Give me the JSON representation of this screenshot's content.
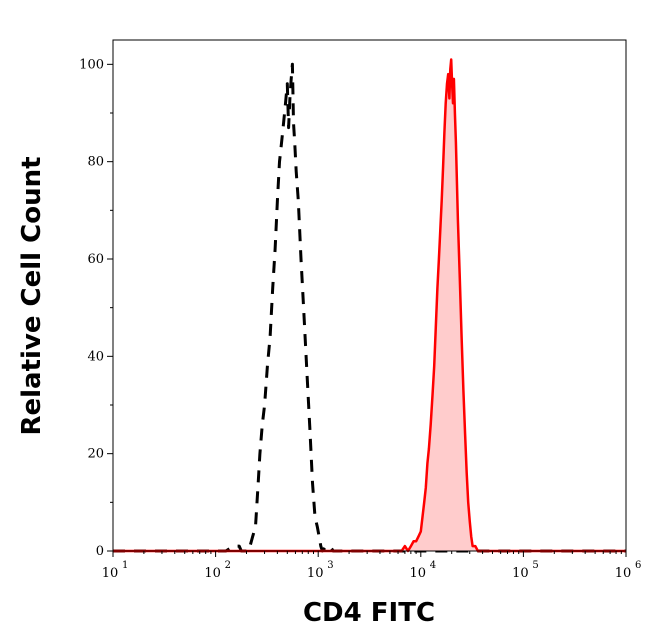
{
  "chart_data": {
    "type": "line",
    "title": "",
    "xlabel": "CD4 FITC",
    "ylabel": "Relative Cell Count",
    "x_scale": "log",
    "xlim": [
      10,
      1000000
    ],
    "ylim": [
      0,
      105
    ],
    "x_ticks": [
      {
        "value": 10,
        "base": "10",
        "exp": "1"
      },
      {
        "value": 100,
        "base": "10",
        "exp": "2"
      },
      {
        "value": 1000,
        "base": "10",
        "exp": "3"
      },
      {
        "value": 10000,
        "base": "10",
        "exp": "4"
      },
      {
        "value": 100000,
        "base": "10",
        "exp": "5"
      },
      {
        "value": 1000000,
        "base": "10",
        "exp": "6"
      }
    ],
    "y_ticks": [
      "0",
      "20",
      "40",
      "60",
      "80",
      "100"
    ],
    "grid": false,
    "legend": "none",
    "series": [
      {
        "style": "dashed",
        "color": "#000000",
        "fill": "none",
        "points": [
          [
            10,
            0
          ],
          [
            126,
            0
          ],
          [
            150,
            1
          ],
          [
            170,
            1
          ],
          [
            178,
            0
          ],
          [
            190,
            0
          ],
          [
            210,
            0
          ],
          [
            230,
            3
          ],
          [
            245,
            5
          ],
          [
            260,
            14
          ],
          [
            270,
            20
          ],
          [
            285,
            26
          ],
          [
            300,
            30
          ],
          [
            320,
            38
          ],
          [
            340,
            44
          ],
          [
            360,
            54
          ],
          [
            380,
            62
          ],
          [
            400,
            72
          ],
          [
            420,
            80
          ],
          [
            440,
            84
          ],
          [
            460,
            88
          ],
          [
            480,
            92
          ],
          [
            500,
            96
          ],
          [
            515,
            87
          ],
          [
            530,
            93
          ],
          [
            545,
            97
          ],
          [
            560,
            100
          ],
          [
            575,
            88
          ],
          [
            590,
            84
          ],
          [
            610,
            78
          ],
          [
            640,
            72
          ],
          [
            680,
            60
          ],
          [
            720,
            50
          ],
          [
            770,
            38
          ],
          [
            830,
            25
          ],
          [
            880,
            14
          ],
          [
            930,
            7
          ],
          [
            980,
            5
          ],
          [
            1020,
            3
          ],
          [
            1060,
            1
          ],
          [
            1100,
            0
          ],
          [
            1200,
            1
          ],
          [
            1300,
            1
          ],
          [
            1400,
            0
          ],
          [
            1600,
            0
          ],
          [
            1000000,
            0
          ]
        ]
      },
      {
        "style": "solid",
        "color": "#ff0000",
        "fill": "#ffcccc",
        "points": [
          [
            10,
            0
          ],
          [
            6500,
            0
          ],
          [
            7000,
            1
          ],
          [
            7500,
            0
          ],
          [
            8000,
            1
          ],
          [
            8500,
            2
          ],
          [
            9000,
            2
          ],
          [
            9500,
            3
          ],
          [
            10000,
            4
          ],
          [
            10400,
            7
          ],
          [
            10800,
            10
          ],
          [
            11200,
            13
          ],
          [
            11600,
            18
          ],
          [
            12000,
            21
          ],
          [
            12500,
            26
          ],
          [
            13000,
            32
          ],
          [
            13500,
            38
          ],
          [
            14000,
            46
          ],
          [
            14500,
            54
          ],
          [
            15000,
            60
          ],
          [
            15500,
            66
          ],
          [
            16000,
            72
          ],
          [
            16500,
            79
          ],
          [
            17000,
            86
          ],
          [
            17500,
            92
          ],
          [
            18000,
            96
          ],
          [
            18500,
            98
          ],
          [
            19000,
            93
          ],
          [
            19400,
            99
          ],
          [
            19800,
            101
          ],
          [
            20200,
            96
          ],
          [
            20600,
            92
          ],
          [
            21000,
            97
          ],
          [
            21500,
            90
          ],
          [
            22000,
            84
          ],
          [
            22500,
            76
          ],
          [
            23000,
            68
          ],
          [
            24000,
            56
          ],
          [
            25000,
            44
          ],
          [
            26000,
            33
          ],
          [
            27000,
            24
          ],
          [
            28000,
            16
          ],
          [
            29000,
            10
          ],
          [
            30000,
            6
          ],
          [
            31000,
            3
          ],
          [
            32000,
            1
          ],
          [
            34000,
            1
          ],
          [
            36000,
            0
          ],
          [
            1000000,
            0
          ]
        ]
      }
    ]
  }
}
